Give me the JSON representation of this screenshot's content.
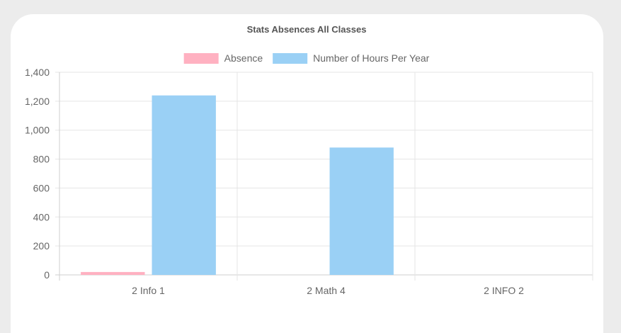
{
  "chart_data": {
    "type": "bar",
    "title": "Stats Absences All Classes",
    "categories": [
      "2 Info 1",
      "2 Math 4",
      "2 INFO 2"
    ],
    "series": [
      {
        "name": "Absence",
        "values": [
          20,
          0,
          0
        ],
        "color": "#ffb1c1",
        "border": "#ff6384"
      },
      {
        "name": "Number of Hours Per Year",
        "values": [
          1240,
          880,
          0
        ],
        "color": "#9ad0f5",
        "border": "#36a2eb"
      }
    ],
    "ylim": [
      0,
      1400
    ],
    "yticks": [
      "0",
      "200",
      "400",
      "600",
      "800",
      "1,000",
      "1,200",
      "1,400"
    ],
    "grid": true,
    "legend_position": "top"
  }
}
